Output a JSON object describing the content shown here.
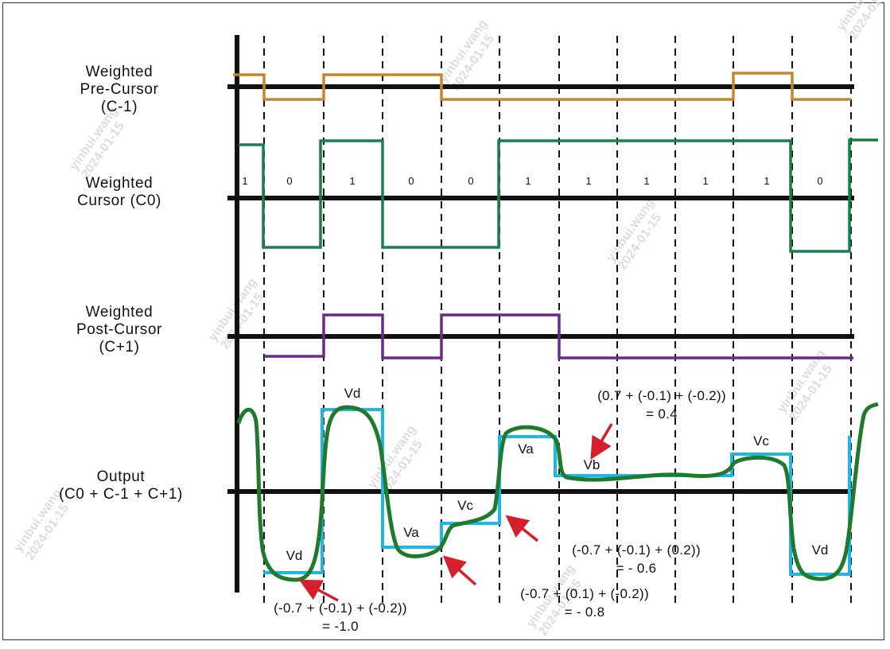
{
  "labels": {
    "pre_cursor": [
      "Weighted",
      "Pre-Cursor",
      "(C-1)"
    ],
    "cursor": [
      "Weighted",
      "Cursor (C0)"
    ],
    "post_cursor": [
      "Weighted",
      "Post-Cursor",
      "(C+1)"
    ],
    "output": [
      "Output",
      "(C0 + C-1 + C+1)"
    ]
  },
  "bits": [
    "1",
    "0",
    "1",
    "0",
    "0",
    "1",
    "1",
    "1",
    "1",
    "1",
    "0"
  ],
  "levels": {
    "vd_top": "Vd",
    "vd_bottom_left": "Vd",
    "va_mid": "Va",
    "vc_mid": "Vc",
    "va_high": "Va",
    "vb": "Vb",
    "vc_high": "Vc",
    "vd_bottom_right": "Vd"
  },
  "annotations": {
    "a1": [
      "(-0.7 + (-0.1) + (-0.2))",
      "= -1.0"
    ],
    "a2": [
      "(-0.7 + (0.1) + (-0.2))",
      "= - 0.8"
    ],
    "a3": [
      "(-0.7 + (-0.1) + (0.2))",
      "= - 0.6"
    ],
    "a4": [
      "(0.7 + (-0.1) + (-0.2))",
      "= 0.4"
    ]
  },
  "watermark": [
    "yinbui.wang",
    "2024-01-15"
  ],
  "colors": {
    "pre_cursor": "#c8862c",
    "cursor": "#17804a",
    "post_cursor": "#6a2a8c",
    "output_ideal": "#1fb6e0",
    "output_real": "#1f7a2e",
    "arrow": "#d4202a"
  }
}
